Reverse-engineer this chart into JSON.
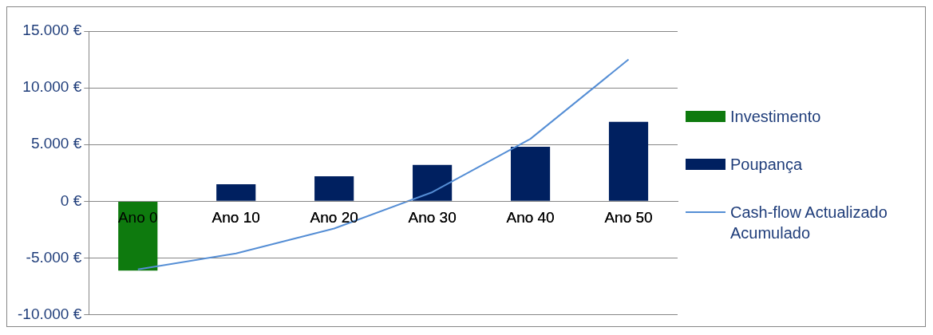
{
  "chart_data": {
    "type": "bar",
    "categories": [
      "Ano 0",
      "Ano 10",
      "Ano 20",
      "Ano 30",
      "Ano 40",
      "Ano 50"
    ],
    "series": [
      {
        "name": "Investimento",
        "color": "#0e7a0e",
        "values": [
          -6100,
          null,
          null,
          null,
          null,
          null
        ]
      },
      {
        "name": "Poupança",
        "color": "#002060",
        "values": [
          null,
          1500,
          2200,
          3200,
          4800,
          7000
        ]
      },
      {
        "name": "Cash-flow Actualizado Acumulado",
        "type": "line",
        "color": "#558ed5",
        "values": [
          -6000,
          -4600,
          -2400,
          800,
          5500,
          12500
        ]
      }
    ],
    "ylim": [
      -10000,
      15000
    ],
    "yticks": [
      {
        "value": -10000,
        "label": "-10.000 €"
      },
      {
        "value": -5000,
        "label": "-5.000 €"
      },
      {
        "value": 0,
        "label": "0 €"
      },
      {
        "value": 5000,
        "label": "5.000 €"
      },
      {
        "value": 10000,
        "label": "10.000 €"
      },
      {
        "value": 15000,
        "label": "15.000 €"
      }
    ],
    "grid": "y",
    "legend": "right",
    "marker": "none"
  }
}
